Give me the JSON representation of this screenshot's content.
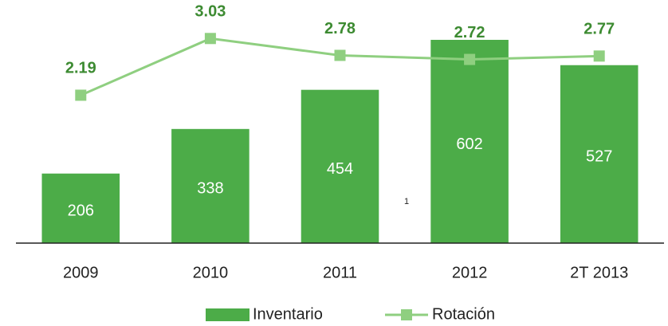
{
  "chart_data": {
    "type": "bar_line",
    "categories": [
      "2009",
      "2010",
      "2011",
      "2012",
      "2T 2013"
    ],
    "series": [
      {
        "name": "Inventario",
        "type": "bar",
        "color": "#4cac48",
        "values": [
          206,
          338,
          454,
          602,
          527
        ]
      },
      {
        "name": "Rotación",
        "type": "line",
        "axis": "y2",
        "color": "#8fcf80",
        "values": [
          2.19,
          3.03,
          2.78,
          2.72,
          2.77
        ]
      }
    ],
    "ylim": [
      0,
      720
    ],
    "y2lim": [
      0,
      3.6
    ],
    "annotation": "1",
    "legend": "bottom"
  }
}
